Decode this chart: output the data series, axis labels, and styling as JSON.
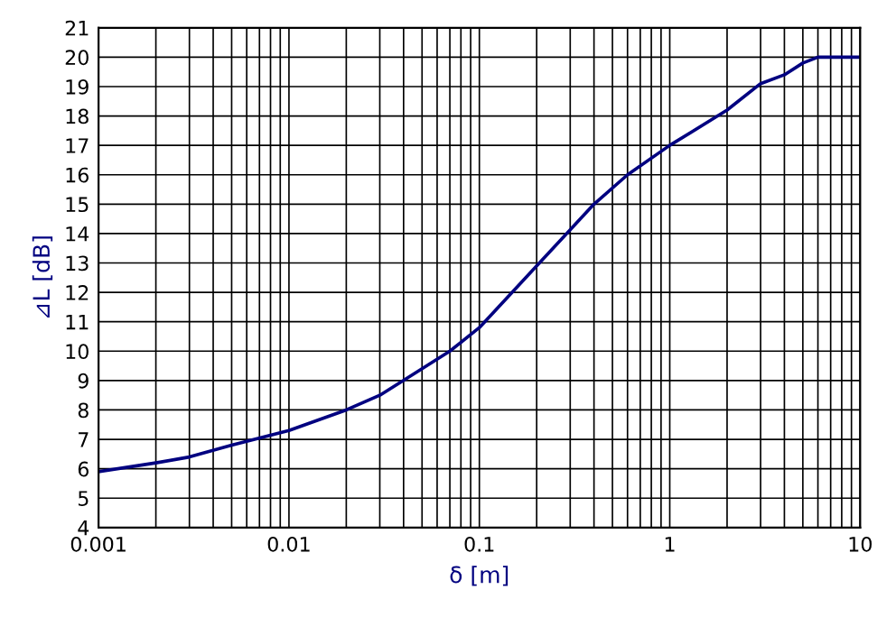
{
  "chart_data": {
    "type": "line",
    "xlabel": "δ [m]",
    "ylabel": "⊿L [dB]",
    "log": "x",
    "xlim": [
      0.001,
      10
    ],
    "ylim": [
      4,
      21
    ],
    "xticks": [
      {
        "value": 0.001,
        "label": "0.001"
      },
      {
        "value": 0.002,
        "label": null
      },
      {
        "value": 0.003,
        "label": null
      },
      {
        "value": 0.004,
        "label": null
      },
      {
        "value": 0.005,
        "label": null
      },
      {
        "value": 0.006,
        "label": null
      },
      {
        "value": 0.007,
        "label": null
      },
      {
        "value": 0.008,
        "label": null
      },
      {
        "value": 0.009,
        "label": null
      },
      {
        "value": 0.01,
        "label": "0.01"
      },
      {
        "value": 0.02,
        "label": null
      },
      {
        "value": 0.03,
        "label": null
      },
      {
        "value": 0.04,
        "label": null
      },
      {
        "value": 0.05,
        "label": null
      },
      {
        "value": 0.06,
        "label": null
      },
      {
        "value": 0.07,
        "label": null
      },
      {
        "value": 0.08,
        "label": null
      },
      {
        "value": 0.09,
        "label": null
      },
      {
        "value": 0.1,
        "label": "0.1"
      },
      {
        "value": 0.2,
        "label": null
      },
      {
        "value": 0.3,
        "label": null
      },
      {
        "value": 0.4,
        "label": null
      },
      {
        "value": 0.5,
        "label": null
      },
      {
        "value": 0.6,
        "label": null
      },
      {
        "value": 0.7,
        "label": null
      },
      {
        "value": 0.8,
        "label": null
      },
      {
        "value": 0.9,
        "label": null
      },
      {
        "value": 1,
        "label": "1"
      },
      {
        "value": 2,
        "label": null
      },
      {
        "value": 3,
        "label": null
      },
      {
        "value": 4,
        "label": null
      },
      {
        "value": 5,
        "label": null
      },
      {
        "value": 6,
        "label": null
      },
      {
        "value": 7,
        "label": null
      },
      {
        "value": 8,
        "label": null
      },
      {
        "value": 9,
        "label": null
      },
      {
        "value": 10,
        "label": "10"
      }
    ],
    "yticks": [
      4,
      5,
      6,
      7,
      8,
      9,
      10,
      11,
      12,
      13,
      14,
      15,
      16,
      17,
      18,
      19,
      20,
      21
    ],
    "grid": true,
    "line_style": "solid",
    "series": [
      {
        "color": "#000080",
        "x": [
          0.001,
          0.002,
          0.003,
          0.005,
          0.01,
          0.02,
          0.03,
          0.05,
          0.07,
          0.1,
          0.2,
          0.4,
          0.6,
          1,
          2,
          3,
          4,
          5,
          6,
          10
        ],
        "values": [
          5.9,
          6.2,
          6.4,
          6.8,
          7.3,
          8.0,
          8.5,
          9.4,
          10.0,
          10.8,
          12.9,
          15.0,
          16.0,
          17.0,
          18.2,
          19.1,
          19.4,
          19.8,
          20.0,
          20.0
        ]
      }
    ]
  }
}
